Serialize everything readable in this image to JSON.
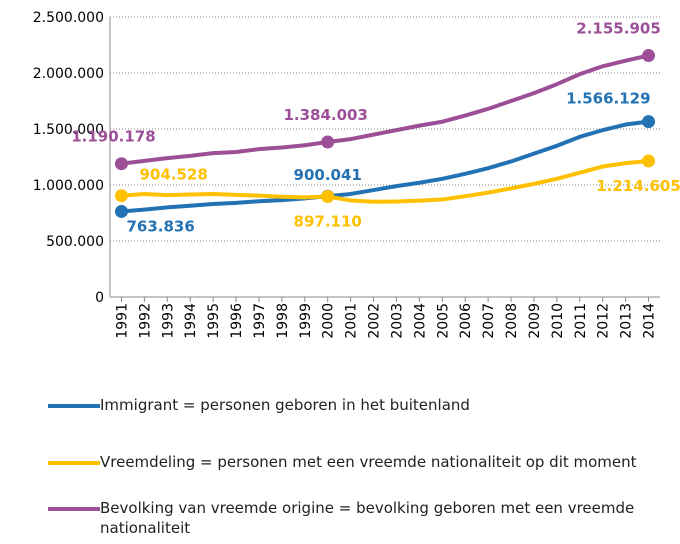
{
  "chart_data": {
    "type": "line",
    "x": [
      1991,
      1992,
      1993,
      1994,
      1995,
      1996,
      1997,
      1998,
      1999,
      2000,
      2001,
      2002,
      2003,
      2004,
      2005,
      2006,
      2007,
      2008,
      2009,
      2010,
      2011,
      2012,
      2013,
      2014
    ],
    "xlim": [
      1990.5,
      2014.5
    ],
    "xticks": [
      1991,
      1992,
      1993,
      1994,
      1995,
      1996,
      1997,
      1998,
      1999,
      2000,
      2001,
      2002,
      2003,
      2004,
      2005,
      2006,
      2007,
      2008,
      2009,
      2010,
      2011,
      2012,
      2013,
      2014
    ],
    "ylim": [
      0,
      2500000
    ],
    "yticks": [
      0,
      {
        "value": 500000,
        "label": "500.000"
      },
      {
        "value": 1000000,
        "label": "1.000.000"
      },
      {
        "value": 1500000,
        "label": "1.500.000"
      },
      {
        "value": 2000000,
        "label": "2.000.000"
      },
      {
        "value": 2500000,
        "label": "2.500.000"
      }
    ],
    "grid": true,
    "legend": "bottom",
    "series": [
      {
        "name": "Immigrant = personen geboren in het buitenland",
        "color": "#2272b4",
        "values": [
          763836,
          780000,
          800000,
          815000,
          830000,
          840000,
          855000,
          865000,
          880000,
          900041,
          920000,
          955000,
          990000,
          1020000,
          1055000,
          1100000,
          1150000,
          1210000,
          1280000,
          1350000,
          1430000,
          1490000,
          1540000,
          1566129
        ],
        "value_labels": [
          "763.836",
          null,
          null,
          null,
          null,
          null,
          null,
          null,
          null,
          "900.041",
          null,
          null,
          null,
          null,
          null,
          null,
          null,
          null,
          null,
          null,
          null,
          null,
          null,
          "1.566.129"
        ]
      },
      {
        "name": "Vreemdeling = personen met een vreemde nationaliteit op dit moment",
        "color": "#ffc000",
        "values": [
          904528,
          920000,
          910000,
          915000,
          920000,
          912000,
          905000,
          895000,
          890000,
          897110,
          862000,
          850000,
          853000,
          860000,
          870000,
          900000,
          932000,
          970000,
          1010000,
          1055000,
          1110000,
          1165000,
          1195000,
          1214605
        ],
        "value_labels": [
          "904.528",
          null,
          null,
          null,
          null,
          null,
          null,
          null,
          null,
          "897.110",
          null,
          null,
          null,
          null,
          null,
          null,
          null,
          null,
          null,
          null,
          null,
          null,
          null,
          "1.214.605"
        ]
      },
      {
        "name": "Bevolking van vreemde origine = bevolking geboren met een vreemde nationaliteit",
        "color": "#9c4f97",
        "values": [
          1190178,
          1215000,
          1240000,
          1260000,
          1285000,
          1295000,
          1320000,
          1335000,
          1355000,
          1384003,
          1410000,
          1450000,
          1490000,
          1530000,
          1565000,
          1620000,
          1680000,
          1750000,
          1820000,
          1900000,
          1990000,
          2060000,
          2110000,
          2155905
        ],
        "value_labels": [
          "1.190.178",
          null,
          null,
          null,
          null,
          null,
          null,
          null,
          null,
          "1.384.003",
          null,
          null,
          null,
          null,
          null,
          null,
          null,
          null,
          null,
          null,
          null,
          null,
          null,
          "2.155.905"
        ]
      }
    ]
  }
}
